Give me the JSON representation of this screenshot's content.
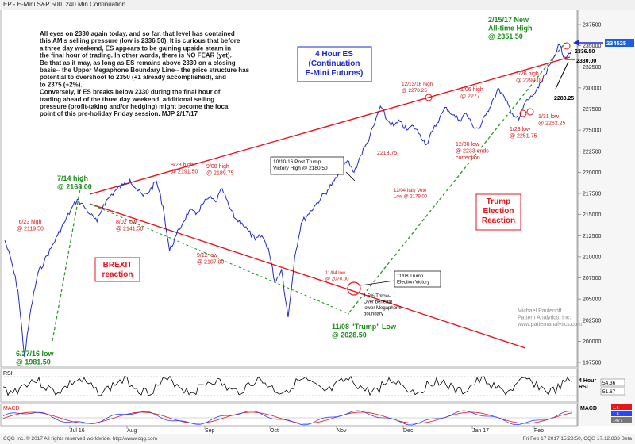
{
  "window": {
    "title": "EP - E-Mini S&P 500, 240 Min Continuation"
  },
  "commentary": [
    "All eyes on 2330 again today, and so far, that level has contained",
    "this AM's selling pressure (low is 2336.50). It is curious that before",
    "a three day weekend, ES appears to be gaining upside steam in",
    "the final hour of trading. In other words, there is NO FEAR (yet).",
    "",
    "Be that as it may, as long as ES remains above 2330 on a closing",
    "basis-- the Upper Megaphone Boundary Line-- the price structure has",
    "potential to overshoot to 2350 (+1 already accomplished), and",
    "to 2375 (+2%).",
    "",
    "Conversely, if ES breaks below 2330 during the final hour of",
    "trading ahead of the three day weekend, additional selling",
    "pressure (profit-taking and/or hedging) might become the focal",
    "point of this pre-holiday Friday session.  MJP 2/17/17"
  ],
  "boxes": {
    "title": [
      "4 Hour ES",
      "(Continuation",
      "E-Mini Futures)"
    ],
    "brexit": [
      "BREXIT",
      "reaction"
    ],
    "trump": [
      "Trump",
      "Election",
      "Reaction"
    ]
  },
  "annotations": {
    "a0627": [
      "6/27/16 low",
      "@ 1981.50"
    ],
    "a0714": [
      "7/14 high",
      "@ 2168.00"
    ],
    "a0623": [
      "6/23 high",
      "@ 2119.50"
    ],
    "a0802": [
      "8/02 low",
      "@ 2141.50"
    ],
    "a0823": [
      "8/23 high",
      "@ 2191.50"
    ],
    "a0908": [
      "9/08 high",
      "@ 2189.75"
    ],
    "a0912": [
      "9/12 low",
      "@ 2107.00"
    ],
    "a1010": [
      "10/10/16 Post Trump",
      "Victory High @ 2180.50"
    ],
    "a1104": [
      "11/04 low",
      "@ 2070.00"
    ],
    "a1108v": [
      "11/08 Trump",
      "Election Victory"
    ],
    "a1108l": [
      "11/08 \"Trump\" Low",
      "@ 2028.50"
    ],
    "throw": [
      "1.5% Throw-",
      "Over beneath",
      "lower Megaphone",
      "boundary"
    ],
    "a2213": [
      "2213.75"
    ],
    "italy": [
      "12/04 Italy Vote",
      "Low @ 2179.00"
    ],
    "a1213": [
      "12/13/16 high",
      "@ 2278.25"
    ],
    "a1230": [
      "12/30 low",
      "@ 2233 ends",
      "correction"
    ],
    "a0106": [
      "1/06 high",
      "@ 2277"
    ],
    "a0126": [
      "1/26 high",
      "@ 2299.00"
    ],
    "a0123": [
      "1/23 low",
      "@ 2251.75"
    ],
    "a0131": [
      "1/31 low",
      "@ 2262.25"
    ],
    "a2283": [
      "2283.25"
    ],
    "a0215": [
      "2/15/17 New",
      "All-time High",
      "@ 2351.50"
    ],
    "a2336": [
      "2336.50"
    ],
    "a2330": [
      "2330.00"
    ],
    "watermark": [
      "Michael Paulenoff",
      "Pattern Analytics, Inc.",
      "www.patternanalytics.com"
    ]
  },
  "price_axis": {
    "ticks": [
      "237500",
      "235000",
      "232500",
      "230000",
      "227500",
      "225000",
      "222500",
      "220000",
      "217500",
      "215000",
      "212500",
      "210000",
      "207500",
      "205000",
      "202500",
      "200000",
      "197500"
    ],
    "last_price": "234525"
  },
  "time_axis": [
    "Jul 16",
    "Aug",
    "Sep",
    "Oct",
    "Nov",
    "Dec",
    "Jan 17",
    "Feb"
  ],
  "rsi": {
    "label": "RSI",
    "side": [
      "4 Hour",
      "RSI"
    ],
    "values": [
      "54.36",
      "51.67"
    ]
  },
  "macd": {
    "label": "MACD",
    "side": "MACD",
    "values": [
      "1.6",
      "1.6",
      "1477"
    ]
  },
  "footer": {
    "left": "CQG Inc. © 2017 All rights reserved worldwide. http://www.cqg.com",
    "right": "Fri Feb 17 2017 15:23:50, CQG 17.12.833 Beta"
  },
  "colors": {
    "price": "#1f2dc4",
    "megaphone": "#e8141c",
    "support": "#2a9a2a",
    "annotation_red": "#d01818",
    "annotation_green": "#1c8c1c",
    "box_blue": "#1a2ad0",
    "rsi_line": "#000000",
    "macd_red": "#e8141c",
    "macd_blue": "#2a44ff",
    "last_price_bg": "#1860e0"
  },
  "chart_data": {
    "type": "line",
    "instrument": "E-Mini S&P 500, 240 Min Continuation",
    "x_ticks": [
      "Jul 16",
      "Aug",
      "Sep",
      "Oct",
      "Nov",
      "Dec",
      "Jan 17",
      "Feb"
    ],
    "ylim": [
      1970,
      2380
    ],
    "series": [
      {
        "values": [
          2119.5,
          2095,
          2060,
          1981.5,
          2040,
          2080,
          2095,
          2110,
          2125,
          2140,
          2155,
          2168,
          2160,
          2150,
          2141.5,
          2162,
          2172,
          2180,
          2185,
          2191.5,
          2180,
          2172,
          2178,
          2189.75,
          2160,
          2107,
          2125,
          2140,
          2155,
          2150,
          2162,
          2170,
          2165,
          2180.5,
          2160,
          2145,
          2140,
          2130,
          2120,
          2125,
          2110,
          2070,
          2085,
          2028.5,
          2100,
          2140,
          2150,
          2160,
          2170,
          2179,
          2190,
          2200,
          2213.75,
          2200,
          2220,
          2235,
          2255,
          2278.25,
          2262,
          2255,
          2260,
          2250,
          2255,
          2245,
          2233,
          2250,
          2265,
          2277,
          2268,
          2262,
          2270,
          2255,
          2251.75,
          2268,
          2285,
          2299,
          2285,
          2270,
          2262.25,
          2283.25,
          2290,
          2300,
          2315,
          2330,
          2351.5,
          2336.5,
          2345
        ]
      }
    ],
    "points": [
      {
        "label": "6/27/16 low",
        "y": 1981.5
      },
      {
        "label": "7/14 high",
        "y": 2168.0
      },
      {
        "label": "6/23 high",
        "y": 2119.5
      },
      {
        "label": "8/02 low",
        "y": 2141.5
      },
      {
        "label": "8/23 high",
        "y": 2191.5
      },
      {
        "label": "9/08 high",
        "y": 2189.75
      },
      {
        "label": "9/12 low",
        "y": 2107.0
      },
      {
        "label": "10/10/16 Post Trump Victory High",
        "y": 2180.5
      },
      {
        "label": "11/04 low",
        "y": 2070.0
      },
      {
        "label": "11/08 \"Trump\" Low",
        "y": 2028.5
      },
      {
        "label": "12/04 Italy Vote Low",
        "y": 2179.0
      },
      {
        "label": "12/13/16 high",
        "y": 2278.25
      },
      {
        "label": "12/30 low",
        "y": 2233.0
      },
      {
        "label": "1/06 high",
        "y": 2277.0
      },
      {
        "label": "1/23 low",
        "y": 2251.75
      },
      {
        "label": "1/26 high",
        "y": 2299.0
      },
      {
        "label": "1/31 low",
        "y": 2262.25
      },
      {
        "label": "2/15/17 New All-time High",
        "y": 2351.5
      }
    ],
    "lines": [
      {
        "name": "upper megaphone",
        "from": 2168,
        "to": 2330
      },
      {
        "name": "lower megaphone",
        "from": 2160,
        "to": 1990
      }
    ],
    "grid": false
  }
}
